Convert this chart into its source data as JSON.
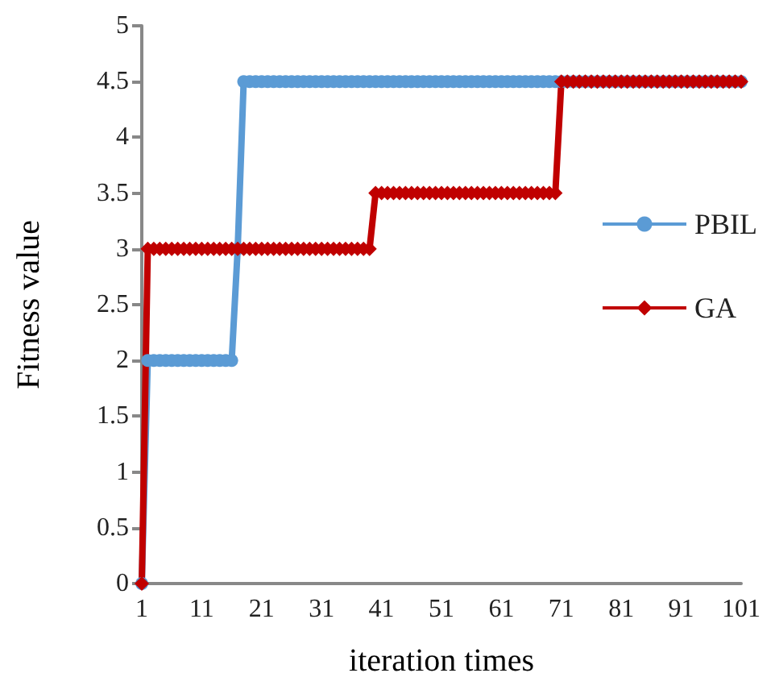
{
  "chart_data": {
    "type": "line",
    "xlabel": "iteration times",
    "ylabel": "Fitness value",
    "categories": [
      "1",
      null,
      null,
      null,
      null,
      null,
      null,
      null,
      null,
      null,
      "11",
      null,
      null,
      null,
      null,
      null,
      null,
      null,
      null,
      null,
      "21",
      null,
      null,
      null,
      null,
      null,
      null,
      null,
      null,
      null,
      "31",
      null,
      null,
      null,
      null,
      null,
      null,
      null,
      null,
      null,
      "41",
      null,
      null,
      null,
      null,
      null,
      null,
      null,
      null,
      null,
      "51",
      null,
      null,
      null,
      null,
      null,
      null,
      null,
      null,
      null,
      "61",
      null,
      null,
      null,
      null,
      null,
      null,
      null,
      null,
      null,
      "71",
      null,
      null,
      null,
      null,
      null,
      null,
      null,
      null,
      null,
      "81",
      null,
      null,
      null,
      null,
      null,
      null,
      null,
      null,
      null,
      "91",
      null,
      null,
      null,
      null,
      null,
      null,
      null,
      null,
      null,
      "101"
    ],
    "series": [
      {
        "name": "PBIL",
        "color": "#5b9bd5",
        "marker": "circle",
        "values": [
          0,
          2,
          2,
          2,
          2,
          2,
          2,
          2,
          2,
          2,
          2,
          2,
          2,
          2,
          2,
          2,
          3,
          4.5,
          4.5,
          4.5,
          4.5,
          4.5,
          4.5,
          4.5,
          4.5,
          4.5,
          4.5,
          4.5,
          4.5,
          4.5,
          4.5,
          4.5,
          4.5,
          4.5,
          4.5,
          4.5,
          4.5,
          4.5,
          4.5,
          4.5,
          4.5,
          4.5,
          4.5,
          4.5,
          4.5,
          4.5,
          4.5,
          4.5,
          4.5,
          4.5,
          4.5,
          4.5,
          4.5,
          4.5,
          4.5,
          4.5,
          4.5,
          4.5,
          4.5,
          4.5,
          4.5,
          4.5,
          4.5,
          4.5,
          4.5,
          4.5,
          4.5,
          4.5,
          4.5,
          4.5,
          4.5,
          4.5,
          4.5,
          4.5,
          4.5,
          4.5,
          4.5,
          4.5,
          4.5,
          4.5,
          4.5,
          4.5,
          4.5,
          4.5,
          4.5,
          4.5,
          4.5,
          4.5,
          4.5,
          4.5,
          4.5,
          4.5,
          4.5,
          4.5,
          4.5,
          4.5,
          4.5,
          4.5,
          4.5,
          4.5,
          4.5
        ]
      },
      {
        "name": "GA",
        "color": "#c00000",
        "marker": "diamond",
        "values": [
          0,
          3,
          3,
          3,
          3,
          3,
          3,
          3,
          3,
          3,
          3,
          3,
          3,
          3,
          3,
          3,
          3,
          3,
          3,
          3,
          3,
          3,
          3,
          3,
          3,
          3,
          3,
          3,
          3,
          3,
          3,
          3,
          3,
          3,
          3,
          3,
          3,
          3,
          3,
          3.5,
          3.5,
          3.5,
          3.5,
          3.5,
          3.5,
          3.5,
          3.5,
          3.5,
          3.5,
          3.5,
          3.5,
          3.5,
          3.5,
          3.5,
          3.5,
          3.5,
          3.5,
          3.5,
          3.5,
          3.5,
          3.5,
          3.5,
          3.5,
          3.5,
          3.5,
          3.5,
          3.5,
          3.5,
          3.5,
          3.5,
          4.5,
          4.5,
          4.5,
          4.5,
          4.5,
          4.5,
          4.5,
          4.5,
          4.5,
          4.5,
          4.5,
          4.5,
          4.5,
          4.5,
          4.5,
          4.5,
          4.5,
          4.5,
          4.5,
          4.5,
          4.5,
          4.5,
          4.5,
          4.5,
          4.5,
          4.5,
          4.5,
          4.5,
          4.5,
          4.5,
          4.5
        ]
      }
    ],
    "ylim": [
      0,
      5
    ],
    "yticks": [
      0,
      0.5,
      1,
      1.5,
      2,
      2.5,
      3,
      3.5,
      4,
      4.5,
      5
    ],
    "grid": false,
    "legend": "right"
  }
}
